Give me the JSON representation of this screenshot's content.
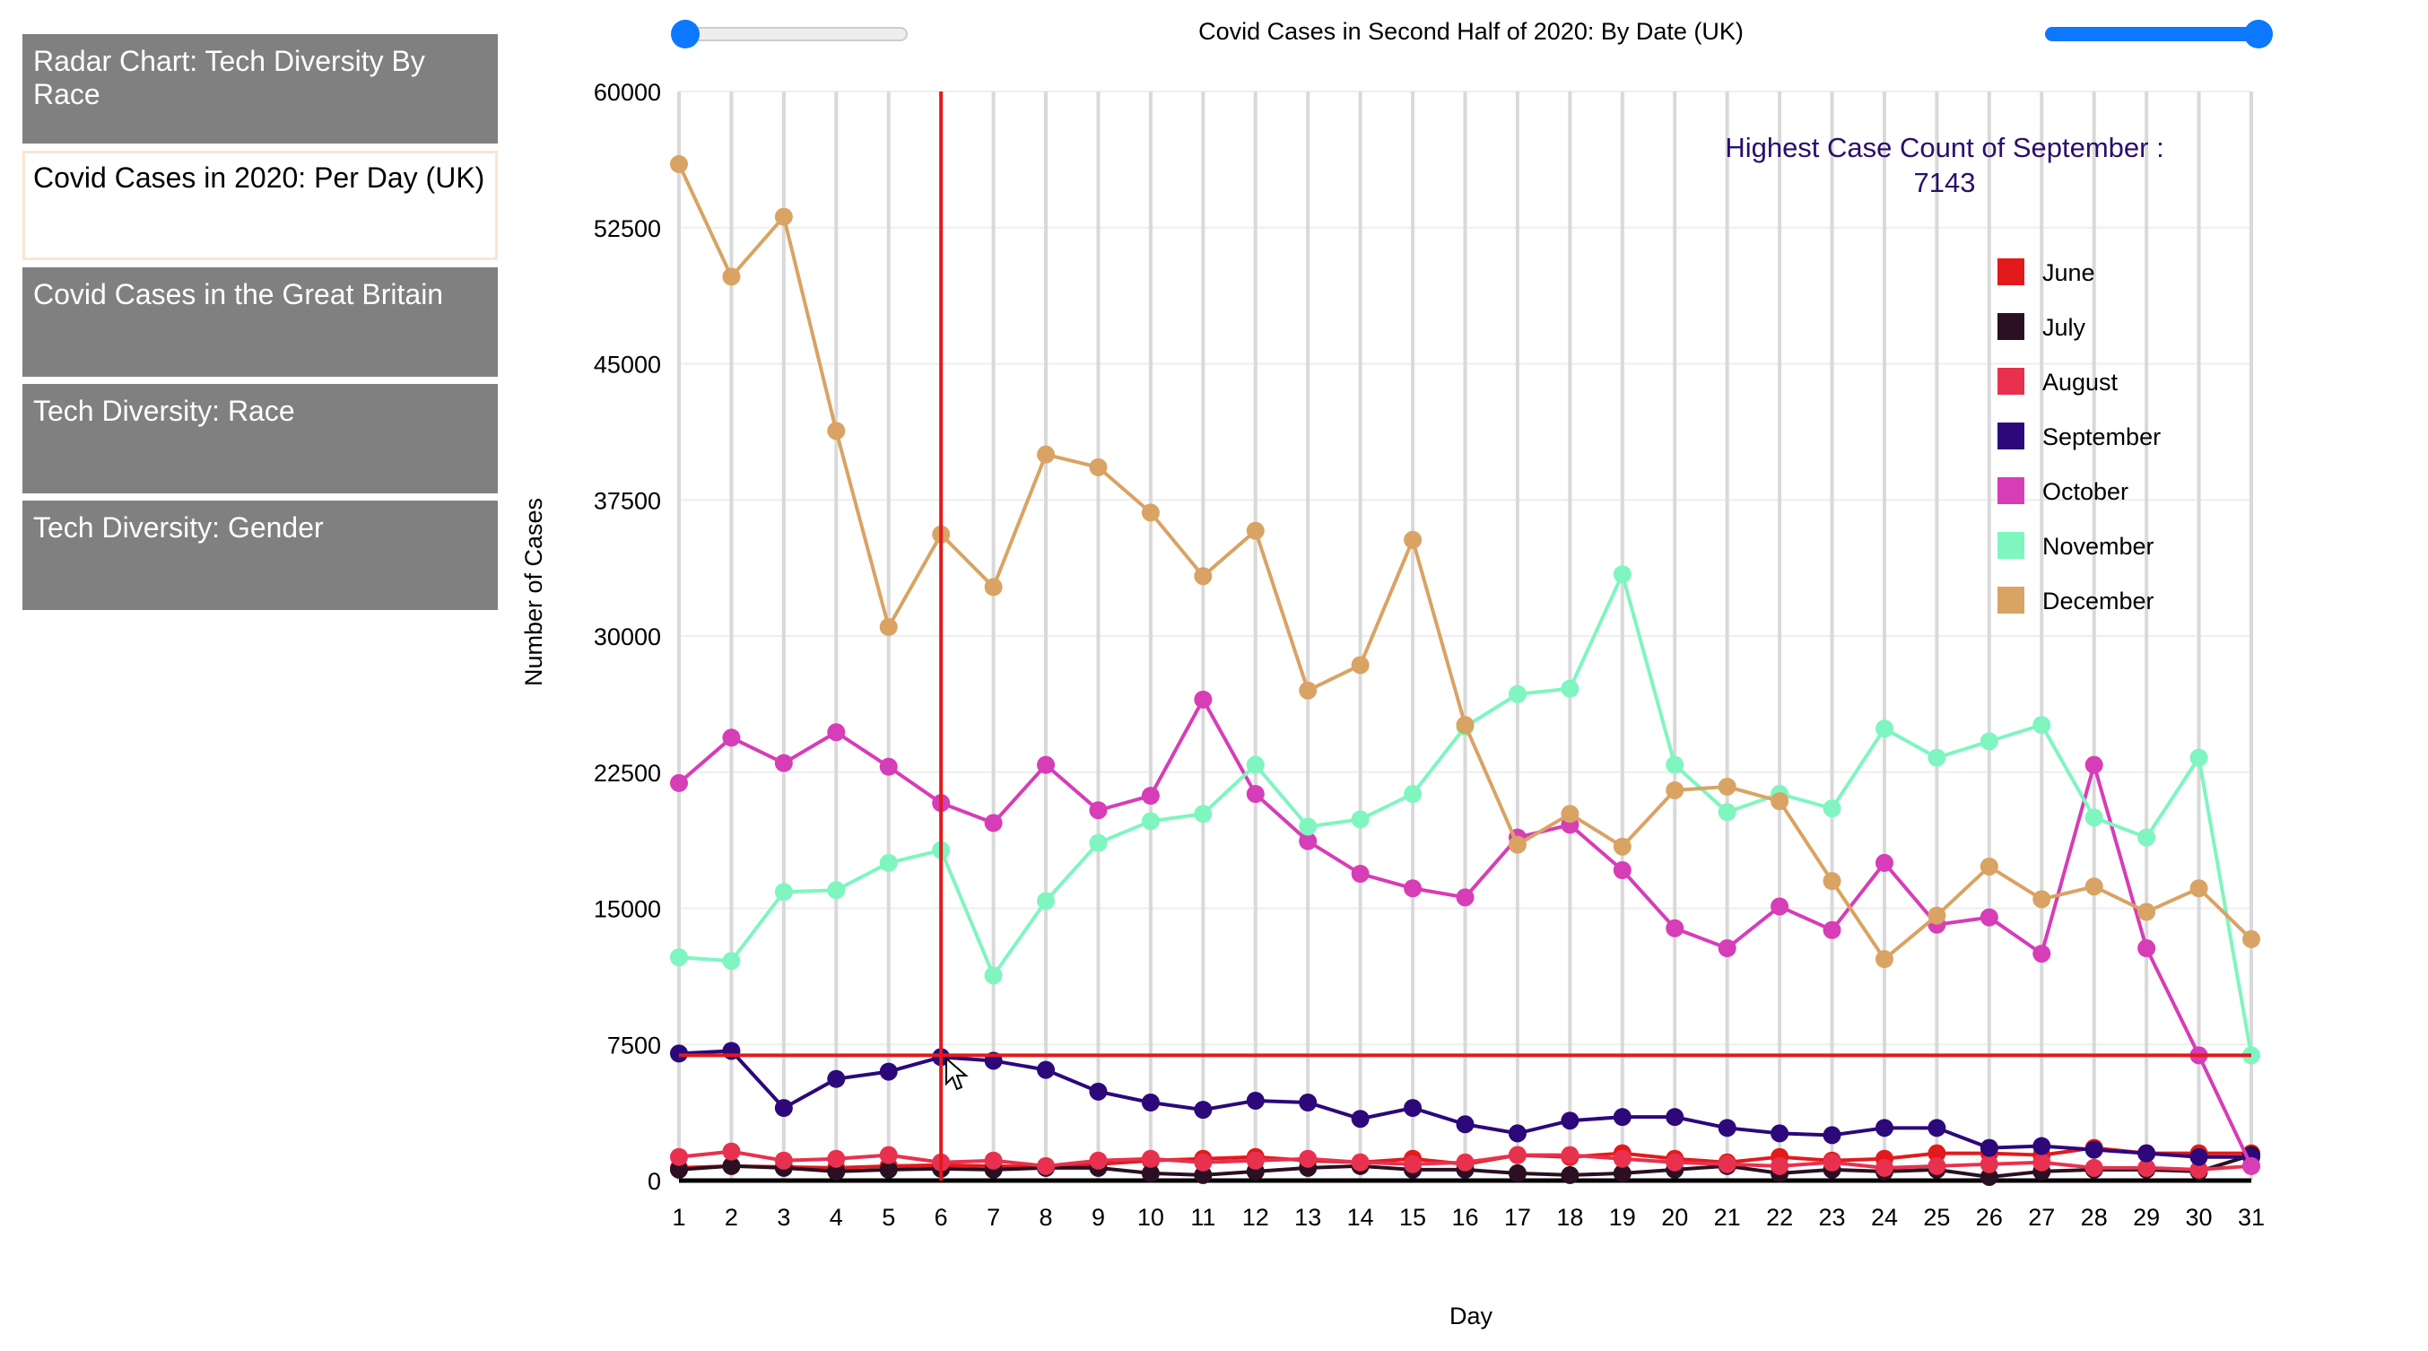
{
  "nav": {
    "items": [
      {
        "label": "Radar Chart: Tech Diversity By Race"
      },
      {
        "label": "Covid Cases in 2020: Per Day (UK)"
      },
      {
        "label": "Covid Cases in the Great Britain"
      },
      {
        "label": "Tech Diversity: Race"
      },
      {
        "label": "Tech Diversity: Gender"
      }
    ],
    "active_index": 1
  },
  "controls": {
    "left_slider_value": 0,
    "right_slider_value": 1
  },
  "chart_data": {
    "type": "line",
    "title": "Covid Cases in Second Half of 2020: By Date (UK)",
    "xlabel": "Day",
    "ylabel": "Number of Cases",
    "ylim": [
      0,
      60000
    ],
    "xlim": [
      1,
      31
    ],
    "y_ticks": [
      0,
      7500,
      15000,
      22500,
      30000,
      37500,
      45000,
      52500,
      60000
    ],
    "x_ticks": [
      1,
      2,
      3,
      4,
      5,
      6,
      7,
      8,
      9,
      10,
      11,
      12,
      13,
      14,
      15,
      16,
      17,
      18,
      19,
      20,
      21,
      22,
      23,
      24,
      25,
      26,
      27,
      28,
      29,
      30,
      31
    ],
    "grid": true,
    "legend_position": "top-right",
    "annotation": {
      "line1": "Highest Case Count of September :",
      "line2": "7143",
      "color": "#2a0e6b"
    },
    "highlight": {
      "x": 6,
      "y": 6900,
      "line_color": "#e31a1c"
    },
    "series": [
      {
        "name": "June",
        "color": "#e31a1c",
        "values": [
          700,
          800,
          750,
          700,
          800,
          850,
          800,
          750,
          900,
          1100,
          1200,
          1300,
          1100,
          1000,
          1200,
          900,
          1400,
          1300,
          1500,
          1200,
          1000,
          1300,
          1100,
          1200,
          1500,
          1500,
          1400,
          1800,
          1500,
          1500,
          1500
        ]
      },
      {
        "name": "July",
        "color": "#2b0f23",
        "values": [
          600,
          800,
          700,
          500,
          600,
          650,
          600,
          700,
          700,
          400,
          300,
          500,
          700,
          800,
          600,
          600,
          400,
          300,
          400,
          600,
          800,
          400,
          600,
          500,
          600,
          200,
          500,
          600,
          600,
          500,
          1400
        ]
      },
      {
        "name": "August",
        "color": "#e8314f",
        "values": [
          1300,
          1600,
          1100,
          1200,
          1400,
          1000,
          1100,
          800,
          1100,
          1200,
          1000,
          1100,
          1200,
          1000,
          900,
          1000,
          1400,
          1400,
          1200,
          1000,
          900,
          800,
          1000,
          700,
          800,
          900,
          1000,
          700,
          700,
          600,
          800
        ]
      },
      {
        "name": "September",
        "color": "#2c087a",
        "values": [
          7000,
          7143,
          4000,
          5600,
          6000,
          6800,
          6600,
          6100,
          4900,
          4300,
          3900,
          4400,
          4300,
          3400,
          4000,
          3100,
          2600,
          3300,
          3500,
          3500,
          2900,
          2600,
          2500,
          2900,
          2900,
          1800,
          1900,
          1700,
          1500,
          1300,
          1300
        ]
      },
      {
        "name": "October",
        "color": "#d63db7",
        "values": [
          21900,
          24400,
          23000,
          24700,
          22800,
          20800,
          19700,
          22900,
          20400,
          21200,
          26500,
          21300,
          18700,
          16900,
          16100,
          15600,
          18900,
          19600,
          17100,
          13900,
          12800,
          15100,
          13800,
          17500,
          14100,
          14500,
          12500,
          22900,
          12800,
          6900,
          800
        ]
      },
      {
        "name": "November",
        "color": "#7ff5c0",
        "values": [
          12300,
          12100,
          15900,
          16000,
          17500,
          18200,
          11300,
          15400,
          18600,
          19800,
          20200,
          22900,
          19500,
          19900,
          21300,
          25000,
          26800,
          27100,
          33400,
          22900,
          20300,
          21300,
          20500,
          24900,
          23300,
          24200,
          25100,
          20000,
          18900,
          23300,
          6900
        ]
      },
      {
        "name": "December",
        "color": "#d9a363",
        "values": [
          56000,
          49800,
          53100,
          41300,
          30500,
          35600,
          32700,
          40000,
          39300,
          36800,
          33300,
          35800,
          27000,
          28400,
          35300,
          25100,
          18500,
          20200,
          18400,
          21500,
          21700,
          20900,
          16500,
          12200,
          14600,
          17300,
          15500,
          16200,
          14800,
          16100,
          13300
        ]
      }
    ]
  }
}
